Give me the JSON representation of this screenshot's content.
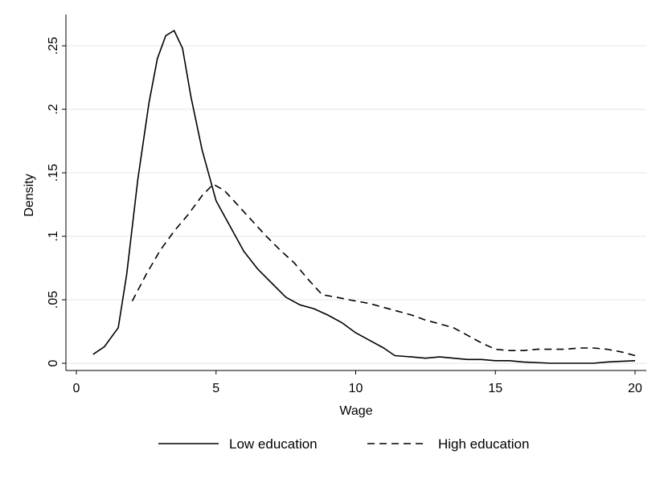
{
  "chart_data": {
    "type": "line",
    "title": "",
    "xlabel": "Wage",
    "ylabel": "Density",
    "xlim": [
      0,
      20
    ],
    "ylim": [
      0,
      0.27
    ],
    "x_ticks": [
      0,
      5,
      10,
      15,
      20
    ],
    "x_tick_labels": [
      "0",
      "5",
      "10",
      "15",
      "20"
    ],
    "y_ticks": [
      0,
      0.05,
      0.1,
      0.15,
      0.2,
      0.25
    ],
    "y_tick_labels": [
      "0",
      ".05",
      ".1",
      ".15",
      ".2",
      ".25"
    ],
    "grid": "horizontal",
    "legend_position": "bottom",
    "series": [
      {
        "name": "Low education",
        "style": "solid",
        "color": "#000000",
        "x": [
          0.6,
          1.0,
          1.5,
          1.8,
          2.2,
          2.6,
          2.9,
          3.2,
          3.5,
          3.8,
          4.1,
          4.5,
          5.0,
          5.5,
          6.0,
          6.5,
          7.0,
          7.5,
          8.0,
          8.5,
          9.0,
          9.5,
          10.0,
          10.5,
          11.0,
          11.4,
          12.0,
          12.5,
          13.0,
          13.5,
          14.0,
          14.5,
          15.0,
          15.5,
          16.0,
          17.0,
          18.0,
          18.5,
          19.0,
          20.0
        ],
        "y": [
          0.007,
          0.013,
          0.028,
          0.07,
          0.145,
          0.205,
          0.24,
          0.258,
          0.262,
          0.248,
          0.21,
          0.168,
          0.128,
          0.108,
          0.088,
          0.074,
          0.063,
          0.052,
          0.046,
          0.043,
          0.038,
          0.032,
          0.024,
          0.018,
          0.012,
          0.006,
          0.005,
          0.004,
          0.005,
          0.004,
          0.003,
          0.003,
          0.002,
          0.002,
          0.001,
          0.0,
          0.0,
          0.0,
          0.001,
          0.002
        ]
      },
      {
        "name": "High education",
        "style": "dashed",
        "color": "#000000",
        "x": [
          2.0,
          2.5,
          3.0,
          3.5,
          4.0,
          4.5,
          4.9,
          5.3,
          5.8,
          6.3,
          6.8,
          7.3,
          7.8,
          8.3,
          8.8,
          9.3,
          10.0,
          10.5,
          11.0,
          11.5,
          12.0,
          12.5,
          13.0,
          13.5,
          14.0,
          14.5,
          15.0,
          15.5,
          16.0,
          16.5,
          17.0,
          17.5,
          18.0,
          18.5,
          19.0,
          19.5,
          20.0
        ],
        "y": [
          0.049,
          0.07,
          0.089,
          0.104,
          0.117,
          0.132,
          0.141,
          0.136,
          0.124,
          0.112,
          0.1,
          0.089,
          0.079,
          0.066,
          0.054,
          0.052,
          0.049,
          0.047,
          0.044,
          0.041,
          0.038,
          0.034,
          0.031,
          0.028,
          0.022,
          0.016,
          0.011,
          0.01,
          0.01,
          0.011,
          0.011,
          0.011,
          0.012,
          0.012,
          0.011,
          0.009,
          0.006
        ]
      }
    ]
  }
}
